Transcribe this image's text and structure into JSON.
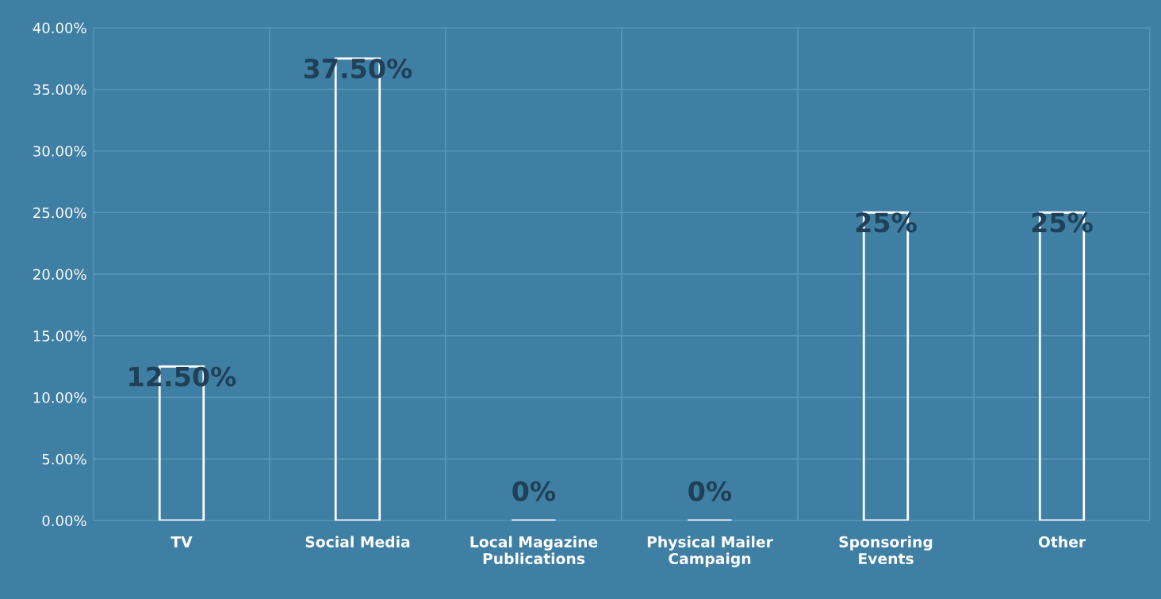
{
  "chart_data": {
    "type": "bar",
    "categories": [
      "TV",
      "Social Media",
      "Local Magazine Publications",
      "Physical Mailer Campaign",
      "Sponsoring Events",
      "Other"
    ],
    "values": [
      12.5,
      37.5,
      0,
      0,
      25,
      25
    ],
    "value_labels": [
      "12.50%",
      "37.50%",
      "0%",
      "0%",
      "25%",
      "25%"
    ],
    "color": "#ffffff",
    "ylim": [
      0,
      40
    ],
    "yticks": [
      {
        "value": 0,
        "label": "0.00%"
      },
      {
        "value": 5,
        "label": "5.00%"
      },
      {
        "value": 10,
        "label": "10.00%"
      },
      {
        "value": 15,
        "label": "15.00%"
      },
      {
        "value": 20,
        "label": "20.00%"
      },
      {
        "value": 25,
        "label": "25.00%"
      },
      {
        "value": 30,
        "label": "30.00%"
      },
      {
        "value": 35,
        "label": "35.00%"
      },
      {
        "value": 40,
        "label": "40.00%"
      }
    ],
    "grid": true
  }
}
